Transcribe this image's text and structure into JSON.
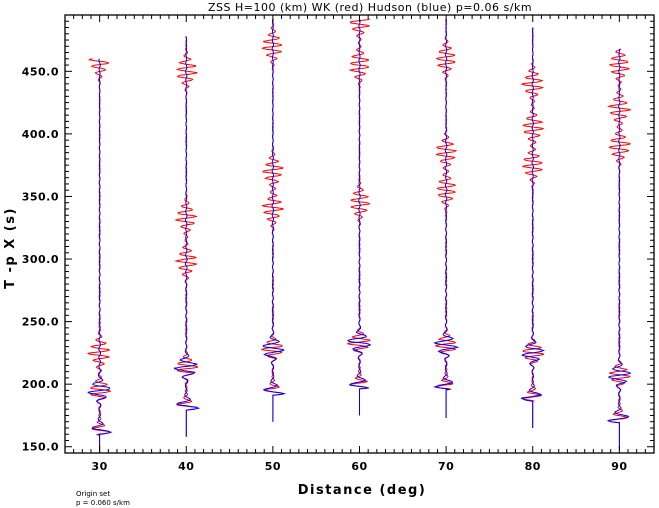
{
  "chart_data": {
    "type": "line",
    "title": "ZSS H=100 (km) WK (red) Hudson (blue) p=0.06 s/km",
    "xlabel": "Distance (deg)",
    "ylabel": "T -p X (s)",
    "xlim": [
      26,
      94
    ],
    "ylim": [
      145,
      495
    ],
    "x_ticks": [
      "30",
      "40",
      "50",
      "60",
      "70",
      "80",
      "90"
    ],
    "y_ticks": [
      "150.0",
      "200.0",
      "250.0",
      "300.0",
      "350.0",
      "400.0",
      "450.0"
    ],
    "grid": false,
    "series_colors": {
      "wk": "#ff0000",
      "hudson": "#0000ff"
    },
    "traces": [
      {
        "distance": 30,
        "start": 146,
        "end": 460,
        "hudson_first_arrival": 160,
        "wk_bursts": [
          160,
          195,
          225,
          458
        ]
      },
      {
        "distance": 40,
        "start": 158,
        "end": 478,
        "hudson_first_arrival": 180,
        "wk_bursts": [
          180,
          213,
          298,
          333,
          450
        ]
      },
      {
        "distance": 50,
        "start": 170,
        "end": 492,
        "hudson_first_arrival": 192,
        "wk_bursts": [
          192,
          228,
          340,
          370,
          470
        ]
      },
      {
        "distance": 60,
        "start": 175,
        "end": 492,
        "hudson_first_arrival": 197,
        "wk_bursts": [
          197,
          233,
          345,
          455,
          490
        ]
      },
      {
        "distance": 70,
        "start": 173,
        "end": 492,
        "hudson_first_arrival": 196,
        "wk_bursts": [
          196,
          231,
          355,
          385,
          460
        ]
      },
      {
        "distance": 80,
        "start": 165,
        "end": 485,
        "hudson_first_arrival": 187,
        "wk_bursts": [
          187,
          225,
          375,
          405,
          440
        ]
      },
      {
        "distance": 90,
        "start": 148,
        "end": 468,
        "hudson_first_arrival": 170,
        "wk_bursts": [
          170,
          207,
          390,
          420,
          455
        ]
      }
    ]
  },
  "footer": {
    "line1": "Origin set",
    "line2": "p = 0.060 s/km"
  }
}
